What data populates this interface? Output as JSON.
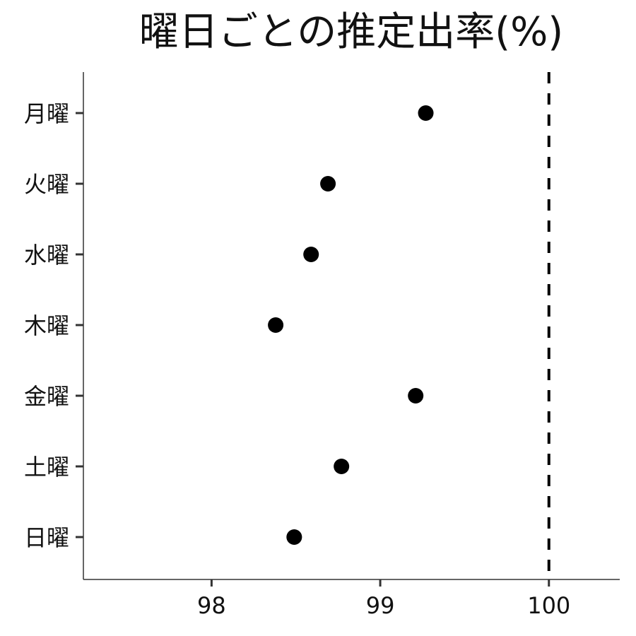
{
  "chart_data": {
    "type": "scatter",
    "title": "曜日ごとの推定出率(%)",
    "xlabel": "",
    "ylabel": "",
    "categories": [
      "月曜",
      "火曜",
      "水曜",
      "木曜",
      "金曜",
      "土曜",
      "日曜"
    ],
    "values": [
      99.27,
      98.69,
      98.59,
      98.38,
      99.21,
      98.77,
      98.49
    ],
    "xlim": [
      97.24,
      100.42
    ],
    "xticks": [
      98,
      99,
      100
    ],
    "xtick_labels": [
      "98",
      "99",
      "100"
    ],
    "reference_line": {
      "x": 100,
      "style": "dashed"
    },
    "grid": false,
    "legend": "none"
  },
  "colors": {
    "point": "#000000",
    "axis": "#333333",
    "reference": "#000000",
    "background": "#ffffff"
  }
}
